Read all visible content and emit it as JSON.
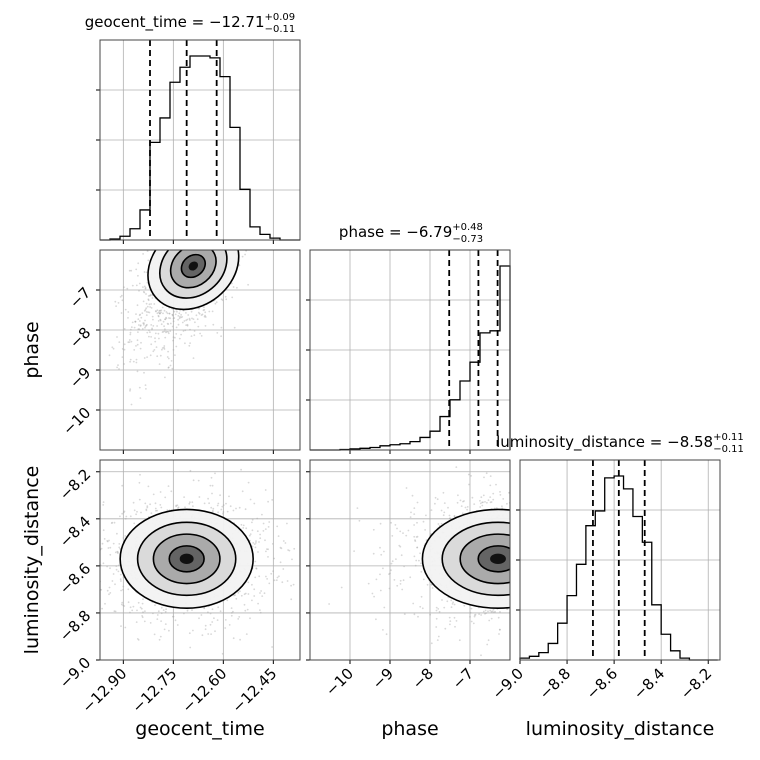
{
  "chart_data": {
    "type": "corner",
    "parameters": [
      "geocent_time",
      "phase",
      "luminosity_distance"
    ],
    "grid": true,
    "axes": {
      "geocent_time": {
        "range": [
          -12.97,
          -12.37
        ],
        "ticks": [
          -12.9,
          -12.75,
          -12.6,
          -12.45
        ],
        "tick_labels": [
          "−12.90",
          "−12.75",
          "−12.60",
          "−12.45"
        ]
      },
      "phase": {
        "range": [
          -11.0,
          -6.0
        ],
        "ticks": [
          -10,
          -9,
          -8,
          -7
        ],
        "tick_labels": [
          "−10",
          "−9",
          "−8",
          "−7"
        ]
      },
      "luminosity_distance": {
        "range": [
          -9.0,
          -8.15
        ],
        "ticks": [
          -9.0,
          -8.8,
          -8.6,
          -8.4,
          -8.2
        ],
        "tick_labels": [
          "−9.0",
          "−8.8",
          "−8.6",
          "−8.4",
          "−8.2"
        ]
      }
    },
    "titles": [
      {
        "param": "geocent_time",
        "prefix": "geocent_time = −12.71",
        "sup": "+0.09",
        "sub": "−0.11"
      },
      {
        "param": "phase",
        "prefix": "phase = −6.79",
        "sup": "+0.48",
        "sub": "−0.73"
      },
      {
        "param": "luminosity_distance",
        "prefix": "luminosity_distance = −8.58",
        "sup": "+0.11",
        "sub": "−0.11"
      }
    ],
    "axis_labels": {
      "geocent_time": "geocent_time",
      "phase": "phase",
      "luminosity_distance": "luminosity_distance"
    },
    "histograms": {
      "geocent_time": {
        "bin_edges": [
          -12.97,
          -12.94,
          -12.91,
          -12.88,
          -12.85,
          -12.82,
          -12.79,
          -12.76,
          -12.73,
          -12.7,
          -12.67,
          -12.64,
          -12.61,
          -12.58,
          -12.55,
          -12.52,
          -12.49,
          -12.46,
          -12.43,
          -12.4,
          -12.37
        ],
        "counts": [
          0.0,
          0.005,
          0.02,
          0.06,
          0.16,
          0.52,
          0.65,
          0.84,
          0.92,
          0.98,
          0.98,
          0.97,
          0.87,
          0.6,
          0.27,
          0.07,
          0.03,
          0.01,
          0.0,
          0.0
        ],
        "quantiles": [
          -12.82,
          -12.71,
          -12.62
        ]
      },
      "phase": {
        "bin_edges": [
          -11.0,
          -10.75,
          -10.5,
          -10.25,
          -10.0,
          -9.75,
          -9.5,
          -9.25,
          -9.0,
          -8.75,
          -8.5,
          -8.25,
          -8.0,
          -7.75,
          -7.5,
          -7.25,
          -7.0,
          -6.75,
          -6.5,
          -6.25,
          -6.0
        ],
        "counts": [
          0.0,
          0.0,
          0.0,
          0.002,
          0.005,
          0.008,
          0.012,
          0.02,
          0.025,
          0.03,
          0.04,
          0.06,
          0.09,
          0.16,
          0.24,
          0.33,
          0.42,
          0.56,
          0.57,
          0.88
        ],
        "quantiles": [
          -7.52,
          -6.79,
          -6.31
        ]
      },
      "luminosity_distance": {
        "bin_edges": [
          -9.0,
          -8.96,
          -8.92,
          -8.88,
          -8.84,
          -8.8,
          -8.76,
          -8.72,
          -8.68,
          -8.64,
          -8.6,
          -8.56,
          -8.52,
          -8.48,
          -8.44,
          -8.4,
          -8.36,
          -8.32,
          -8.28,
          -8.24,
          -8.2,
          -8.16
        ],
        "counts": [
          0.01,
          0.02,
          0.04,
          0.09,
          0.2,
          0.35,
          0.52,
          0.73,
          0.81,
          0.99,
          1.0,
          0.93,
          0.78,
          0.64,
          0.3,
          0.14,
          0.05,
          0.01,
          0.0,
          0.0,
          0.0
        ],
        "quantiles": [
          -8.69,
          -8.58,
          -8.47
        ]
      }
    },
    "scatter_2d": [
      {
        "x_param": "geocent_time",
        "y_param": "phase",
        "x_center": -12.69,
        "y_center": -6.4,
        "x_std": 0.07,
        "y_std": 0.85,
        "correlation": 0.65,
        "scatter_color": "#a8a8a8",
        "contour_color": "#000000"
      },
      {
        "x_param": "geocent_time",
        "y_param": "luminosity_distance",
        "x_center": -12.71,
        "y_center": -8.57,
        "x_std": 0.095,
        "y_std": 0.1,
        "correlation": 0.0,
        "scatter_color": "#a8a8a8",
        "contour_color": "#000000"
      },
      {
        "x_param": "phase",
        "y_param": "luminosity_distance",
        "x_center": -6.3,
        "y_center": -8.57,
        "x_std": 0.9,
        "y_std": 0.1,
        "correlation": 0.0,
        "scatter_color": "#a8a8a8",
        "contour_color": "#000000"
      }
    ]
  }
}
